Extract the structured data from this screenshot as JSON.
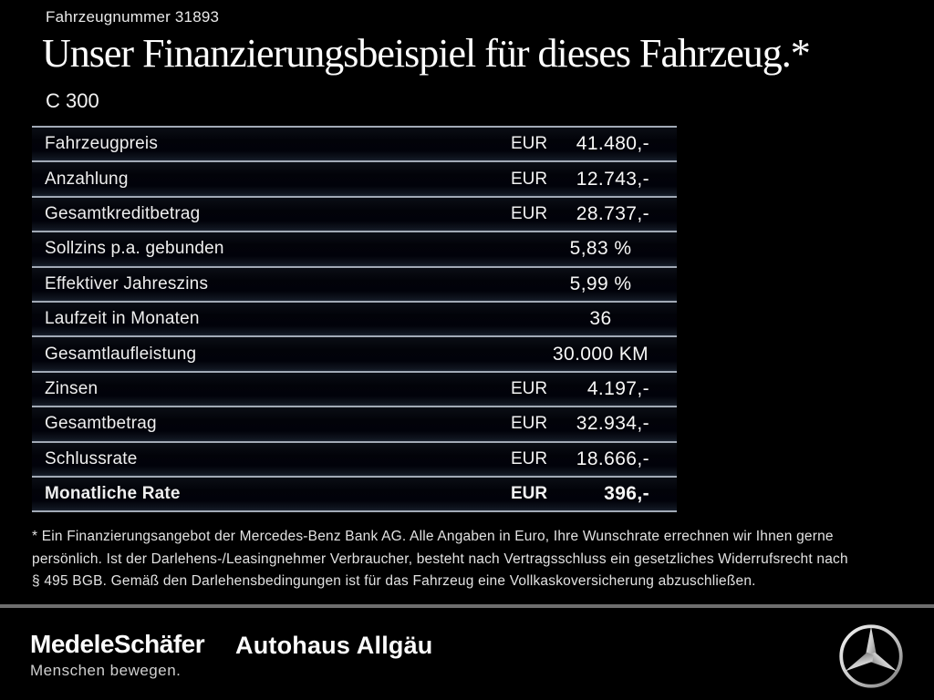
{
  "header": {
    "vehicle_number": "Fahrzeugnummer 31893",
    "title": "Unser Finanzierungsbeispiel für dieses Fahrzeug.*",
    "model": "C 300"
  },
  "table": {
    "rows": [
      {
        "label": "Fahrzeugpreis",
        "currency": "EUR",
        "value": "41.480,-",
        "bold": false
      },
      {
        "label": "Anzahlung",
        "currency": "EUR",
        "value": "12.743,-",
        "bold": false
      },
      {
        "label": "Gesamtkreditbetrag",
        "currency": "EUR",
        "value": "28.737,-",
        "bold": false
      },
      {
        "label": "Sollzins p.a. gebunden",
        "currency": "",
        "value": "5,83 %",
        "bold": false
      },
      {
        "label": "Effektiver Jahreszins",
        "currency": "",
        "value": "5,99 %",
        "bold": false
      },
      {
        "label": "Laufzeit in Monaten",
        "currency": "",
        "value": "36",
        "bold": false
      },
      {
        "label": "Gesamtlaufleistung",
        "currency": "",
        "value": "30.000 KM",
        "bold": false
      },
      {
        "label": "Zinsen",
        "currency": "EUR",
        "value": "4.197,-",
        "bold": false
      },
      {
        "label": "Gesamtbetrag",
        "currency": "EUR",
        "value": "32.934,-",
        "bold": false
      },
      {
        "label": "Schlussrate",
        "currency": "EUR",
        "value": "18.666,-",
        "bold": false
      },
      {
        "label": "Monatliche Rate",
        "currency": "EUR",
        "value": "396,-",
        "bold": true
      }
    ]
  },
  "footnote": {
    "lines": [
      "* Ein Finanzierungsangebot der Mercedes-Benz Bank AG. Alle Angaben in Euro, Ihre Wunschrate errechnen wir Ihnen gerne",
      "persönlich. Ist der Darlehens-/Leasingnehmer Verbraucher, besteht nach Vertragsschluss ein gesetzliches Widerrufsrecht nach",
      "§ 495 BGB. Gemäß den Darlehensbedingungen ist für das Fahrzeug eine Vollkaskoversicherung abzuschließen."
    ]
  },
  "footer": {
    "dealer_name": "MedeleSchäfer",
    "dealer_tagline": "Menschen bewegen.",
    "dealer_name_2": "Autohaus Allgäu",
    "brand_icon": "mercedes-star"
  },
  "colors": {
    "background": "#000000",
    "separator_line": "#a2aab6",
    "footer_divider": "#6e6e6e",
    "text": "#ffffff"
  }
}
